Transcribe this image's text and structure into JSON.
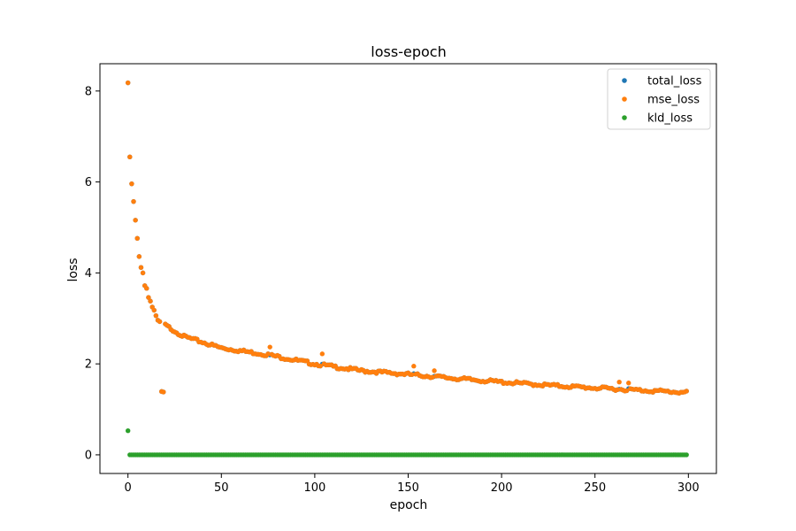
{
  "chart_data": {
    "type": "scatter",
    "title": "loss-epoch",
    "xlabel": "epoch",
    "ylabel": "loss",
    "xlim": [
      -15,
      315
    ],
    "ylim": [
      -0.41,
      8.6
    ],
    "xticks": [
      0,
      50,
      100,
      150,
      200,
      250,
      300
    ],
    "yticks": [
      0,
      2,
      4,
      6,
      8
    ],
    "grid": false,
    "legend_position": "top-right",
    "epochs": 300,
    "series": [
      {
        "name": "total_loss",
        "color": "#1f77b4",
        "model": "decay",
        "values": [
          8.18,
          6.55,
          5.96,
          5.57,
          5.16,
          4.76,
          4.36,
          4.12,
          4.0,
          3.72,
          3.66,
          3.46,
          3.38,
          3.25,
          3.18,
          3.06,
          2.96,
          2.93
        ]
      },
      {
        "name": "mse_loss",
        "color": "#ff7f0e",
        "model": "decay",
        "values": [
          8.18,
          6.55,
          5.96,
          5.57,
          5.16,
          4.76,
          4.36,
          4.12,
          4.0,
          3.72,
          3.66,
          3.46,
          3.38,
          3.25,
          3.18,
          3.06,
          2.96,
          2.93
        ],
        "outliers": [
          {
            "x": 76,
            "y": 2.37
          },
          {
            "x": 104,
            "y": 2.22
          },
          {
            "x": 153,
            "y": 1.95
          },
          {
            "x": 164,
            "y": 1.85
          },
          {
            "x": 263,
            "y": 1.6
          },
          {
            "x": 268,
            "y": 1.58
          }
        ]
      },
      {
        "name": "kld_loss",
        "color": "#2ca02c",
        "model": "flat",
        "values": [
          0.53
        ],
        "rest_value": 0.0
      }
    ],
    "anchors": [
      {
        "x": 20,
        "y": 2.85
      },
      {
        "x": 30,
        "y": 2.6
      },
      {
        "x": 50,
        "y": 2.35
      },
      {
        "x": 75,
        "y": 2.2
      },
      {
        "x": 100,
        "y": 2.0
      },
      {
        "x": 125,
        "y": 1.85
      },
      {
        "x": 150,
        "y": 1.77
      },
      {
        "x": 175,
        "y": 1.68
      },
      {
        "x": 200,
        "y": 1.6
      },
      {
        "x": 225,
        "y": 1.53
      },
      {
        "x": 250,
        "y": 1.47
      },
      {
        "x": 275,
        "y": 1.42
      },
      {
        "x": 299,
        "y": 1.37
      }
    ]
  }
}
